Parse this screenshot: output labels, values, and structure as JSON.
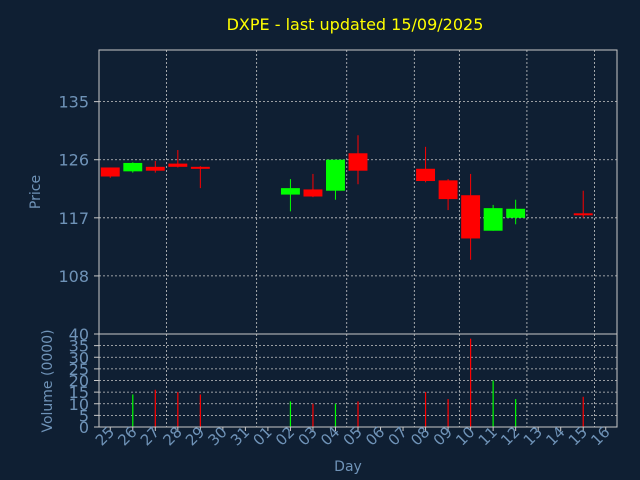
{
  "title": "DXPE - last updated 15/09/2025",
  "colors": {
    "background": "#0f1f33",
    "title": "#ffff00",
    "axis_text": "#6f93b8",
    "up": "#00ff00",
    "down": "#ff0000",
    "grid": "#c8c8c8"
  },
  "chart_data": [
    {
      "type": "candlestick",
      "ylabel": "Price",
      "ylim": [
        99,
        143
      ],
      "yticks": [
        108,
        117,
        126,
        135
      ],
      "grid": true,
      "x_categories": [
        "25",
        "26",
        "27",
        "28",
        "29",
        "30",
        "31",
        "01",
        "02",
        "03",
        "04",
        "05",
        "06",
        "07",
        "08",
        "09",
        "10",
        "11",
        "12",
        "13",
        "14",
        "15",
        "16"
      ],
      "candles": [
        {
          "x": "25",
          "open": 124.8,
          "high": 124.8,
          "low": 123.2,
          "close": 123.4
        },
        {
          "x": "26",
          "open": 124.2,
          "high": 125.6,
          "low": 124.0,
          "close": 125.5
        },
        {
          "x": "27",
          "open": 124.9,
          "high": 125.8,
          "low": 124.0,
          "close": 124.3
        },
        {
          "x": "28",
          "open": 125.4,
          "high": 127.5,
          "low": 124.8,
          "close": 124.9
        },
        {
          "x": "29",
          "open": 124.9,
          "high": 125.0,
          "low": 121.6,
          "close": 124.7
        },
        {
          "x": "02",
          "open": 120.6,
          "high": 123.0,
          "low": 118.0,
          "close": 121.6
        },
        {
          "x": "03",
          "open": 121.4,
          "high": 123.8,
          "low": 120.2,
          "close": 120.3
        },
        {
          "x": "04",
          "open": 121.2,
          "high": 126.0,
          "low": 119.8,
          "close": 126.0
        },
        {
          "x": "05",
          "open": 127.0,
          "high": 129.8,
          "low": 122.2,
          "close": 124.3
        },
        {
          "x": "08",
          "open": 124.6,
          "high": 128.0,
          "low": 122.5,
          "close": 122.7
        },
        {
          "x": "09",
          "open": 122.8,
          "high": 123.0,
          "low": 118.2,
          "close": 119.9
        },
        {
          "x": "10",
          "open": 120.5,
          "high": 123.8,
          "low": 110.5,
          "close": 113.8
        },
        {
          "x": "11",
          "open": 115.0,
          "high": 119.0,
          "low": 115.0,
          "close": 118.5
        },
        {
          "x": "12",
          "open": 117.0,
          "high": 119.8,
          "low": 116.0,
          "close": 118.4
        },
        {
          "x": "15",
          "open": 117.7,
          "high": 121.2,
          "low": 117.0,
          "close": 117.6
        }
      ]
    },
    {
      "type": "bar",
      "ylabel": "Volume (0000)",
      "xlabel": "Day",
      "ylim": [
        0,
        40
      ],
      "yticks": [
        0,
        5,
        10,
        15,
        20,
        25,
        30,
        35,
        40
      ],
      "grid": true,
      "x_categories": [
        "25",
        "26",
        "27",
        "28",
        "29",
        "30",
        "31",
        "01",
        "02",
        "03",
        "04",
        "05",
        "06",
        "07",
        "08",
        "09",
        "10",
        "11",
        "12",
        "13",
        "14",
        "15",
        "16"
      ],
      "bars": [
        {
          "x": "26",
          "value": 14,
          "direction": "up"
        },
        {
          "x": "27",
          "value": 16,
          "direction": "down"
        },
        {
          "x": "28",
          "value": 15,
          "direction": "down"
        },
        {
          "x": "29",
          "value": 14,
          "direction": "down"
        },
        {
          "x": "02",
          "value": 11,
          "direction": "up"
        },
        {
          "x": "03",
          "value": 10,
          "direction": "down"
        },
        {
          "x": "04",
          "value": 10,
          "direction": "up"
        },
        {
          "x": "05",
          "value": 11,
          "direction": "down"
        },
        {
          "x": "08",
          "value": 15,
          "direction": "down"
        },
        {
          "x": "09",
          "value": 12,
          "direction": "down"
        },
        {
          "x": "10",
          "value": 38,
          "direction": "down"
        },
        {
          "x": "11",
          "value": 20,
          "direction": "up"
        },
        {
          "x": "12",
          "value": 12,
          "direction": "up"
        },
        {
          "x": "15",
          "value": 13,
          "direction": "down"
        }
      ]
    }
  ]
}
